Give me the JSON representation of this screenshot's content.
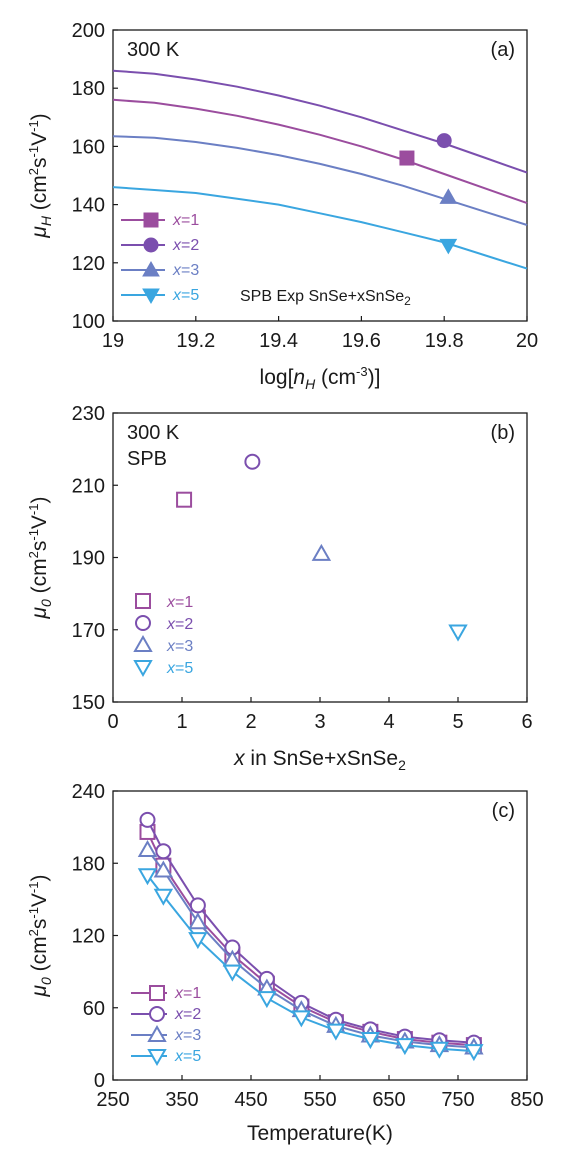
{
  "chart_data": [
    {
      "type": "line",
      "panel_label": "(a)",
      "annotation": "300 K",
      "xlabel": {
        "pre": "log[",
        "var": "n",
        "sub": "H",
        "post": " (cm",
        "sup": "-3",
        "end": ")]"
      },
      "ylabel": {
        "var": "μ",
        "sub": "H",
        "units": " (cm",
        "sup1": "2",
        "mid": "s",
        "sup2": "-1",
        "mid2": "V",
        "sup3": "-1",
        "end": ")"
      },
      "xlim": [
        19,
        20
      ],
      "ylim": [
        100,
        200
      ],
      "xticks": [
        "19",
        "19.2",
        "19.4",
        "19.6",
        "19.8",
        "20"
      ],
      "yticks": [
        "100",
        "120",
        "140",
        "160",
        "180",
        "200"
      ],
      "legend": {
        "x_prefix": "x",
        "entries": [
          "=1",
          "=2",
          "=3",
          "=5"
        ],
        "caption_pre": "SPB Exp SnSe+xSnSe",
        "caption_sub": "2",
        "placement": "bottom-left"
      },
      "series": [
        {
          "name": "x=1",
          "color": "#9b4d9e",
          "marker": "square",
          "curve_x": [
            19,
            19.1,
            19.2,
            19.3,
            19.4,
            19.5,
            19.6,
            19.7,
            19.8,
            19.9,
            20
          ],
          "curve_y": [
            176,
            175,
            173,
            170.5,
            167.5,
            164,
            160,
            155.5,
            150.5,
            145.5,
            140.5
          ],
          "points": [
            [
              19.71,
              156
            ]
          ]
        },
        {
          "name": "x=2",
          "color": "#7b4fae",
          "marker": "circle",
          "curve_x": [
            19,
            19.1,
            19.2,
            19.3,
            19.4,
            19.5,
            19.6,
            19.7,
            19.8,
            19.9,
            20
          ],
          "curve_y": [
            186,
            185,
            183,
            180.5,
            177.5,
            174,
            170,
            165.5,
            161,
            156,
            151
          ],
          "points": [
            [
              19.8,
              162
            ]
          ]
        },
        {
          "name": "x=3",
          "color": "#6b7fc4",
          "marker": "triangle-up",
          "curve_x": [
            19,
            19.1,
            19.2,
            19.3,
            19.4,
            19.5,
            19.6,
            19.7,
            19.8,
            19.9,
            20
          ],
          "curve_y": [
            163.5,
            163,
            161.5,
            159.5,
            157,
            154,
            150.5,
            146.5,
            142,
            137.5,
            133
          ],
          "points": [
            [
              19.81,
              142.5
            ]
          ]
        },
        {
          "name": "x=5",
          "color": "#3aa6e0",
          "marker": "triangle-down",
          "curve_x": [
            19,
            19.1,
            19.2,
            19.3,
            19.4,
            19.5,
            19.6,
            19.7,
            19.8,
            19.9,
            20
          ],
          "curve_y": [
            146,
            145,
            144,
            142,
            140,
            137,
            134,
            130.5,
            127,
            122.5,
            118
          ],
          "points": [
            [
              19.81,
              126
            ]
          ]
        }
      ]
    },
    {
      "type": "scatter",
      "panel_label": "(b)",
      "annotation": [
        "300 K",
        "SPB"
      ],
      "xlabel": {
        "var": "x",
        "mid": " in SnSe+xSnSe",
        "sub": "2"
      },
      "ylabel": {
        "var": "μ",
        "sub": "0",
        "units": " (cm",
        "sup1": "2",
        "mid": "s",
        "sup2": "-1",
        "mid2": "V",
        "sup3": "-1",
        "end": ")"
      },
      "xlim": [
        0,
        6
      ],
      "ylim": [
        150,
        230
      ],
      "xticks": [
        "0",
        "1",
        "2",
        "3",
        "4",
        "5",
        "6"
      ],
      "yticks": [
        "150",
        "170",
        "190",
        "210",
        "230"
      ],
      "legend": {
        "x_prefix": "x",
        "entries": [
          "=1",
          "=2",
          "=3",
          "=5"
        ],
        "placement": "bottom-left"
      },
      "series": [
        {
          "name": "x=1",
          "color": "#9b4d9e",
          "marker": "square-open",
          "points": [
            [
              1.03,
              206
            ]
          ]
        },
        {
          "name": "x=2",
          "color": "#7b4fae",
          "marker": "circle-open",
          "points": [
            [
              2.02,
              216.5
            ]
          ]
        },
        {
          "name": "x=3",
          "color": "#6b7fc4",
          "marker": "triangle-up-open",
          "points": [
            [
              3.02,
              191
            ]
          ]
        },
        {
          "name": "x=5",
          "color": "#3aa6e0",
          "marker": "triangle-down-open",
          "points": [
            [
              5.0,
              169.5
            ]
          ]
        }
      ]
    },
    {
      "type": "line",
      "panel_label": "(c)",
      "xlabel": "Temperature(K)",
      "ylabel": {
        "var": "μ",
        "sub": "0",
        "units": " (cm",
        "sup1": "2",
        "mid": "s",
        "sup2": "-1",
        "mid2": "V",
        "sup3": "-1",
        "end": ")"
      },
      "xlim": [
        250,
        850
      ],
      "ylim": [
        0,
        240
      ],
      "xticks": [
        "250",
        "350",
        "450",
        "550",
        "650",
        "750",
        "850"
      ],
      "yticks": [
        "0",
        "60",
        "120",
        "180",
        "240"
      ],
      "legend": {
        "x_prefix": "x",
        "entries": [
          "=1",
          "=2",
          "=3",
          "=5"
        ],
        "placement": "bottom-left"
      },
      "x": [
        300,
        323,
        373,
        423,
        473,
        523,
        573,
        623,
        673,
        723,
        773
      ],
      "series": [
        {
          "name": "x=1",
          "color": "#9b4d9e",
          "marker": "square-open",
          "values": [
            206,
            178,
            135,
            104,
            80,
            61,
            48,
            40,
            34,
            31,
            29
          ]
        },
        {
          "name": "x=2",
          "color": "#7b4fae",
          "marker": "circle-open",
          "values": [
            216,
            190,
            145,
            110,
            84,
            64,
            50,
            42,
            36,
            33,
            31
          ]
        },
        {
          "name": "x=3",
          "color": "#6b7fc4",
          "marker": "triangle-up-open",
          "values": [
            191,
            174,
            131,
            100,
            76,
            58,
            45,
            37,
            32,
            29,
            27
          ]
        },
        {
          "name": "x=5",
          "color": "#3aa6e0",
          "marker": "triangle-down-open",
          "values": [
            170,
            153,
            117,
            90,
            68,
            52,
            41,
            34,
            29,
            26,
            24
          ]
        }
      ]
    }
  ]
}
